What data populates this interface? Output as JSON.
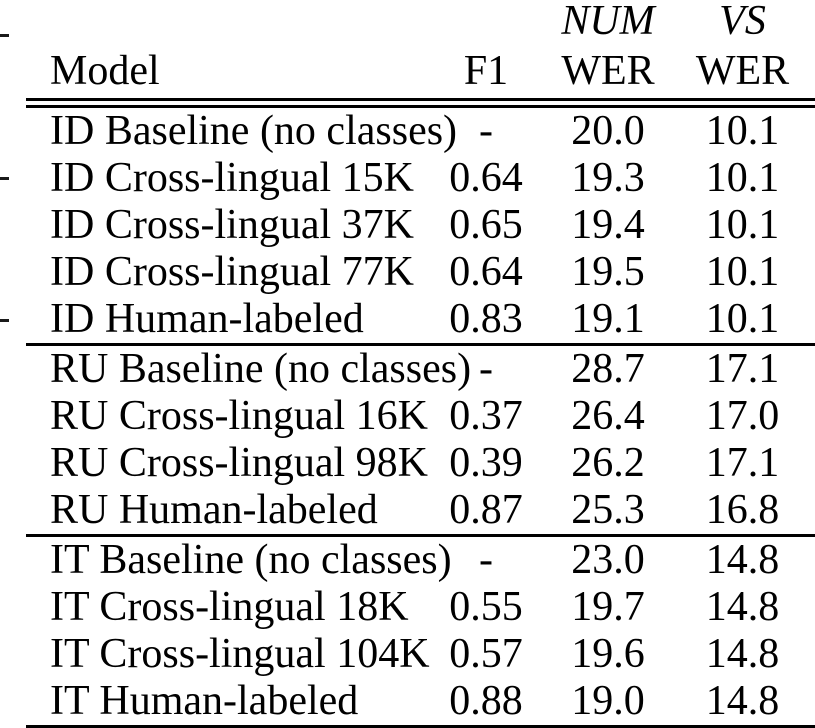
{
  "table": {
    "header": {
      "top": [
        "",
        "",
        "NUM",
        "VS"
      ],
      "bottom": [
        "Model",
        "F1",
        "WER",
        "WER"
      ]
    },
    "sections": [
      {
        "name": "ID",
        "rows": [
          [
            "ID Baseline (no classes)",
            "-",
            "20.0",
            "10.1"
          ],
          [
            "ID Cross-lingual 15K",
            "0.64",
            "19.3",
            "10.1"
          ],
          [
            "ID Cross-lingual 37K",
            "0.65",
            "19.4",
            "10.1"
          ],
          [
            "ID Cross-lingual 77K",
            "0.64",
            "19.5",
            "10.1"
          ],
          [
            "ID Human-labeled",
            "0.83",
            "19.1",
            "10.1"
          ]
        ]
      },
      {
        "name": "RU",
        "rows": [
          [
            "RU Baseline (no classes)",
            "-",
            "28.7",
            "17.1"
          ],
          [
            "RU Cross-lingual 16K",
            "0.37",
            "26.4",
            "17.0"
          ],
          [
            "RU Cross-lingual 98K",
            "0.39",
            "26.2",
            "17.1"
          ],
          [
            "RU Human-labeled",
            "0.87",
            "25.3",
            "16.8"
          ]
        ]
      },
      {
        "name": "IT",
        "rows": [
          [
            "IT Baseline (no classes)",
            "-",
            "23.0",
            "14.8"
          ],
          [
            "IT Cross-lingual 18K",
            "0.55",
            "19.7",
            "14.8"
          ],
          [
            "IT Cross-lingual 104K",
            "0.57",
            "19.6",
            "14.8"
          ],
          [
            "IT Human-labeled",
            "0.88",
            "19.0",
            "14.8"
          ]
        ]
      }
    ],
    "cell_names": [
      "model-cell",
      "f1-cell",
      "num-wer-cell",
      "vs-wer-cell"
    ],
    "colors": {
      "text": "#000000",
      "background": "#ffffff",
      "rule": "#000000"
    }
  }
}
